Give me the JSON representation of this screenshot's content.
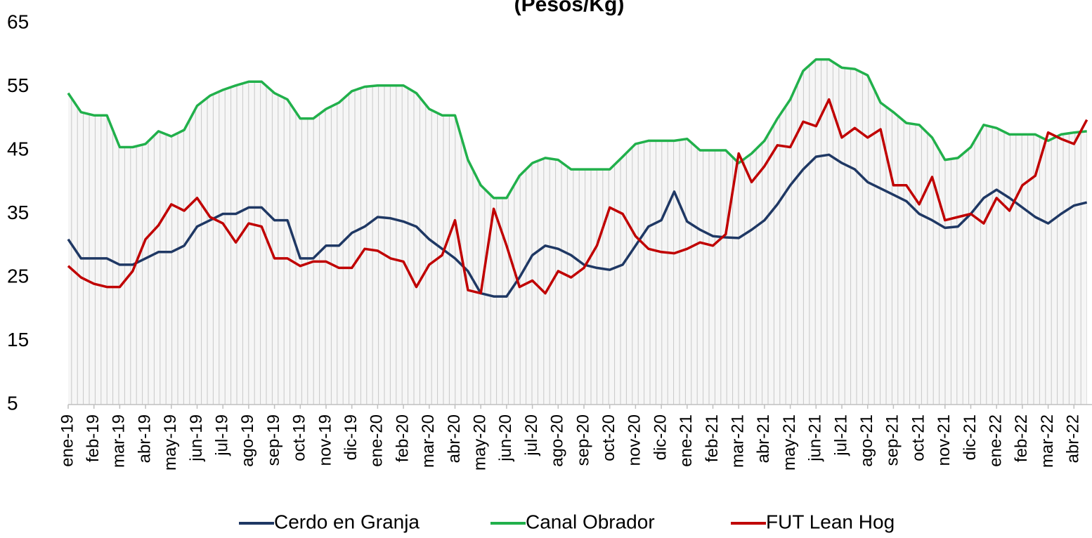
{
  "chart_data": {
    "type": "line",
    "title": "(Pesos/Kg)",
    "categories": [
      "ene-19",
      null,
      "feb-19",
      null,
      "mar-19",
      null,
      "abr-19",
      null,
      "may-19",
      null,
      "jun-19",
      null,
      "jul-19",
      null,
      "ago-19",
      null,
      "sep-19",
      null,
      "oct-19",
      null,
      "nov-19",
      null,
      "dic-19",
      null,
      "ene-20",
      null,
      "feb-20",
      null,
      "mar-20",
      null,
      "abr-20",
      null,
      "may-20",
      null,
      "jun-20",
      null,
      "jul-20",
      null,
      "ago-20",
      null,
      "sep-20",
      null,
      "oct-20",
      null,
      "nov-20",
      null,
      "dic-20",
      null,
      "ene-21",
      null,
      "feb-21",
      null,
      "mar-21",
      null,
      "abr-21",
      null,
      "may-21",
      null,
      "jun-21",
      null,
      "jul-21",
      null,
      "ago-21",
      null,
      "sep-21",
      null,
      "oct-21",
      null,
      "nov-21",
      null,
      "dic-21",
      null,
      "ene-22",
      null,
      "feb-22",
      null,
      "mar-22",
      null,
      "abr-22",
      null
    ],
    "series": [
      {
        "name": "Cerdo en Granja",
        "color": "#1f3864",
        "values": [
          31,
          28,
          28,
          28,
          27,
          27,
          28,
          29,
          29,
          30,
          33,
          34,
          35,
          35,
          36,
          36,
          34,
          34,
          28,
          28,
          30,
          30,
          32,
          33,
          34.5,
          34.3,
          33.8,
          33,
          31,
          29.5,
          28,
          26,
          22.5,
          22,
          22,
          25,
          28.5,
          30,
          29.5,
          28.5,
          27,
          26.5,
          26.2,
          27,
          30,
          33,
          34,
          38.5,
          33.8,
          32.5,
          31.5,
          31.3,
          31.2,
          32.5,
          34,
          36.5,
          39.5,
          42,
          44,
          44.3,
          43,
          42,
          40,
          39,
          38,
          37,
          35,
          34,
          32.8,
          33,
          35,
          37.5,
          38.8,
          37.5,
          36,
          34.5,
          33.5,
          35,
          36.3,
          36.8
        ]
      },
      {
        "name": "Canal Obrador",
        "color": "#21b04b",
        "values": [
          54,
          51,
          50.5,
          50.5,
          45.5,
          45.5,
          46,
          48,
          47.2,
          48.2,
          52,
          53.6,
          54.5,
          55.2,
          55.8,
          55.8,
          54,
          53,
          50,
          50,
          51.5,
          52.5,
          54.3,
          55,
          55.2,
          55.2,
          55.2,
          54,
          51.5,
          50.5,
          50.5,
          43.5,
          39.5,
          37.5,
          37.5,
          41,
          43,
          43.8,
          43.5,
          42,
          42,
          42,
          42,
          44,
          46,
          46.5,
          46.5,
          46.5,
          46.8,
          45,
          45,
          45,
          43,
          44.5,
          46.5,
          50,
          53,
          57.5,
          59.3,
          59.3,
          58,
          57.8,
          56.8,
          52.5,
          51,
          49.3,
          49,
          47,
          43.5,
          43.8,
          45.5,
          49,
          48.5,
          47.5,
          47.5,
          47.5,
          46.5,
          47.5,
          47.8,
          48
        ]
      },
      {
        "name": "FUT Lean Hog",
        "color": "#c00000",
        "values": [
          26.8,
          25,
          24,
          23.5,
          23.5,
          26,
          31,
          33.2,
          36.5,
          35.5,
          37.5,
          34.5,
          33.5,
          30.5,
          33.5,
          33,
          28,
          28,
          26.8,
          27.5,
          27.5,
          26.5,
          26.5,
          29.5,
          29.2,
          28,
          27.5,
          23.5,
          27,
          28.5,
          34,
          23,
          22.5,
          35.8,
          30,
          23.5,
          24.5,
          22.5,
          26,
          25,
          26.5,
          30,
          36,
          35,
          31.5,
          29.5,
          29,
          28.8,
          29.5,
          30.5,
          30,
          31.8,
          44.5,
          40,
          42.5,
          45.8,
          45.5,
          49.5,
          48.8,
          53,
          47,
          48.5,
          47,
          48.3,
          39.5,
          39.5,
          36.5,
          40.8,
          34,
          34.5,
          35,
          33.5,
          37.5,
          35.5,
          39.5,
          41,
          47.8,
          46.8,
          46,
          49.8
        ]
      }
    ],
    "ylim": [
      5,
      65
    ],
    "yticks": [
      5,
      15,
      25,
      35,
      45,
      55,
      65
    ],
    "legend": "bottom"
  }
}
